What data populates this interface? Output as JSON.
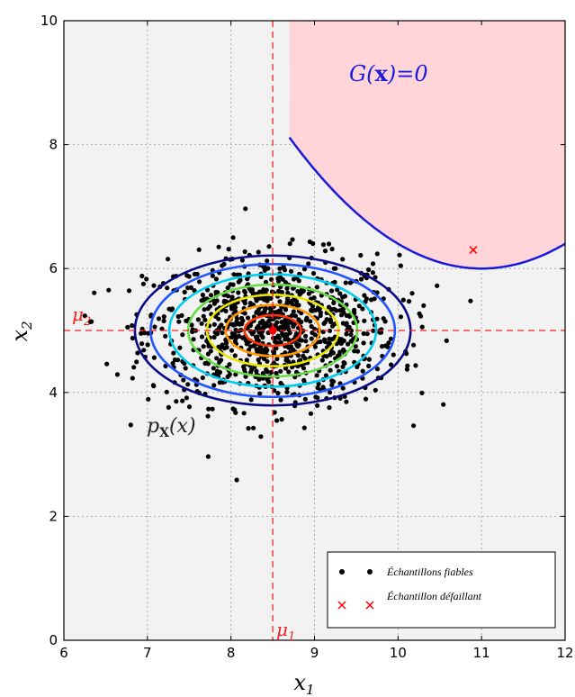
{
  "chart_data": {
    "type": "scatter",
    "title": "",
    "xlabel": "x",
    "xlabel_sub": "1",
    "ylabel": "x",
    "ylabel_sub": "2",
    "xlim": [
      6,
      12
    ],
    "ylim": [
      0,
      10
    ],
    "xticks": [
      "6",
      "7",
      "8",
      "9",
      "10",
      "11",
      "12"
    ],
    "yticks": [
      "0",
      "2",
      "4",
      "6",
      "8",
      "10"
    ],
    "grid": true,
    "mean": {
      "x": 8.5,
      "y": 5.0
    },
    "mu1_label": "μ",
    "mu1_sub": "1",
    "mu2_label": "μ",
    "mu2_sub": "2",
    "limit_state": {
      "label_prefix": "G(",
      "label_bold": "x",
      "label_suffix": ")=0",
      "vertex_x": 11.0,
      "vertex_y": 6.0,
      "curvature": 0.4,
      "fill_color": "#ffd5da",
      "line_color": "#1a1adb"
    },
    "density_label_prefix": "p",
    "density_label_sub": "X",
    "density_label_suffix": "(x)",
    "density_contours": {
      "center": [
        8.5,
        5.0
      ],
      "sigma": [
        0.75,
        0.55
      ],
      "levels_sigma": [
        0.45,
        0.75,
        1.05,
        1.35,
        1.65,
        1.95,
        2.2
      ],
      "colors": [
        "#ff3300",
        "#ff9900",
        "#e8e800",
        "#66dd44",
        "#00ccee",
        "#2255ff",
        "#0a0a88"
      ]
    },
    "series": [
      {
        "name": "Échantillons fiables",
        "marker": "dot",
        "color": "#000000",
        "count": 1000,
        "mean": [
          8.5,
          5.0
        ],
        "std": [
          0.75,
          0.6
        ]
      },
      {
        "name": "Échantillon défaillant",
        "marker": "x",
        "color": "#ff0000",
        "points": [
          [
            10.9,
            6.3
          ]
        ]
      }
    ],
    "legend_position": "lower-right",
    "background": "#f2f2f2"
  }
}
